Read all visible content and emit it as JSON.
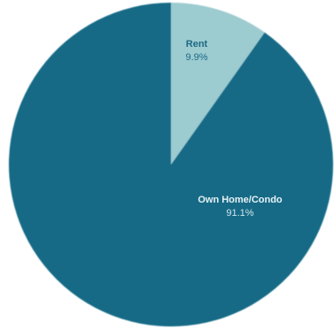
{
  "chart_data": {
    "type": "pie",
    "title": "",
    "slices": [
      {
        "label": "Rent",
        "value": 9.9,
        "value_label": "9.9%",
        "color": "#9ccbd0",
        "label_color": "#1b6a85",
        "value_color": "#1b6a85"
      },
      {
        "label": "Own Home/Condo",
        "value": 91.1,
        "value_label": "91.1%",
        "color": "#146b86",
        "label_color": "#e6f2f5",
        "value_color": "#cfe6ec"
      }
    ],
    "start": "top",
    "direction": "clockwise",
    "legend": "none"
  }
}
